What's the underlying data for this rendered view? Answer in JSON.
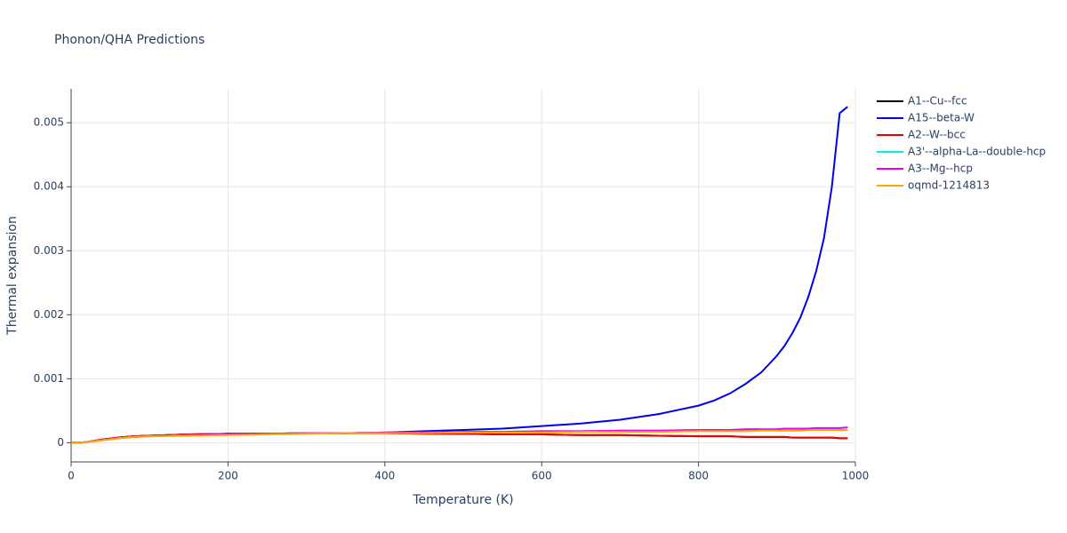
{
  "chart_data": {
    "type": "line",
    "title": "Phonon/QHA Predictions",
    "x_label": "Temperature (K)",
    "y_label": "Thermal expansion",
    "x": [
      0,
      10,
      20,
      40,
      60,
      80,
      100,
      150,
      200,
      250,
      300,
      350,
      400,
      450,
      500,
      550,
      600,
      650,
      700,
      750,
      800,
      820,
      840,
      860,
      880,
      900,
      910,
      920,
      930,
      940,
      950,
      960,
      970,
      980,
      990
    ],
    "series": [
      {
        "name": "A1--Cu--fcc",
        "color": "#000000",
        "values": [
          0,
          0,
          1e-05,
          5e-05,
          8e-05,
          0.0001,
          0.00011,
          0.00013,
          0.00014,
          0.00014,
          0.00015,
          0.00015,
          0.00015,
          0.00014,
          0.00014,
          0.00013,
          0.00013,
          0.00012,
          0.00012,
          0.00011,
          0.0001,
          0.0001,
          0.0001,
          9e-05,
          9e-05,
          9e-05,
          9e-05,
          8e-05,
          8e-05,
          8e-05,
          8e-05,
          8e-05,
          8e-05,
          7e-05,
          7e-05
        ]
      },
      {
        "name": "A15--beta-W",
        "color": "#0000ee",
        "values": [
          0,
          0,
          1e-05,
          5e-05,
          8e-05,
          0.0001,
          0.00011,
          0.00013,
          0.00014,
          0.00014,
          0.00015,
          0.00015,
          0.00016,
          0.00018,
          0.0002,
          0.00022,
          0.00026,
          0.0003,
          0.00036,
          0.00045,
          0.00058,
          0.00066,
          0.00077,
          0.00092,
          0.0011,
          0.00136,
          0.00152,
          0.00172,
          0.00196,
          0.00228,
          0.00268,
          0.0032,
          0.004,
          0.00515,
          0.00525
        ]
      },
      {
        "name": "A2--W--bcc",
        "color": "#ee0000",
        "values": [
          0,
          0,
          1e-05,
          5e-05,
          8e-05,
          0.0001,
          0.00011,
          0.00013,
          0.00014,
          0.00014,
          0.00015,
          0.00015,
          0.00015,
          0.00014,
          0.00014,
          0.00013,
          0.00013,
          0.00012,
          0.00012,
          0.00011,
          0.0001,
          0.0001,
          0.0001,
          9e-05,
          9e-05,
          9e-05,
          9e-05,
          8e-05,
          8e-05,
          8e-05,
          8e-05,
          8e-05,
          8e-05,
          7e-05,
          7e-05
        ]
      },
      {
        "name": "A3'--alpha-La--double-hcp",
        "color": "#00eeee",
        "values": [
          0,
          0,
          1e-05,
          4e-05,
          7e-05,
          9e-05,
          0.0001,
          0.00012,
          0.00013,
          0.00014,
          0.00015,
          0.00015,
          0.00016,
          0.00016,
          0.00017,
          0.00017,
          0.00018,
          0.00018,
          0.00019,
          0.00019,
          0.0002,
          0.0002,
          0.0002,
          0.00021,
          0.00021,
          0.00021,
          0.00022,
          0.00022,
          0.00022,
          0.00022,
          0.00023,
          0.00023,
          0.00023,
          0.00023,
          0.00024
        ]
      },
      {
        "name": "A3--Mg--hcp",
        "color": "#ee00ee",
        "values": [
          0,
          0,
          1e-05,
          4e-05,
          7e-05,
          9e-05,
          0.0001,
          0.00012,
          0.00013,
          0.00014,
          0.00015,
          0.00015,
          0.00016,
          0.00016,
          0.00017,
          0.00017,
          0.00018,
          0.00018,
          0.00019,
          0.00019,
          0.0002,
          0.0002,
          0.0002,
          0.00021,
          0.00021,
          0.00021,
          0.00022,
          0.00022,
          0.00022,
          0.00022,
          0.00023,
          0.00023,
          0.00023,
          0.00023,
          0.00024
        ]
      },
      {
        "name": "oqmd-1214813",
        "color": "#ffa500",
        "values": [
          0,
          0,
          1e-05,
          4e-05,
          7e-05,
          9e-05,
          0.0001,
          0.00011,
          0.00012,
          0.00013,
          0.00014,
          0.00015,
          0.00015,
          0.00015,
          0.00016,
          0.00016,
          0.00016,
          0.00017,
          0.00017,
          0.00017,
          0.00018,
          0.00018,
          0.00018,
          0.00018,
          0.00019,
          0.00019,
          0.00019,
          0.00019,
          0.00019,
          0.0002,
          0.0002,
          0.0002,
          0.0002,
          0.0002,
          0.0002
        ]
      }
    ],
    "xlim": [
      0,
      1000
    ],
    "xticks": [
      0,
      200,
      400,
      600,
      800,
      1000
    ],
    "ylim": [
      -0.0003,
      0.00553
    ],
    "yticks": [
      0,
      0.001,
      0.002,
      0.003,
      0.004,
      0.005
    ],
    "grid": true,
    "legend": "right"
  }
}
